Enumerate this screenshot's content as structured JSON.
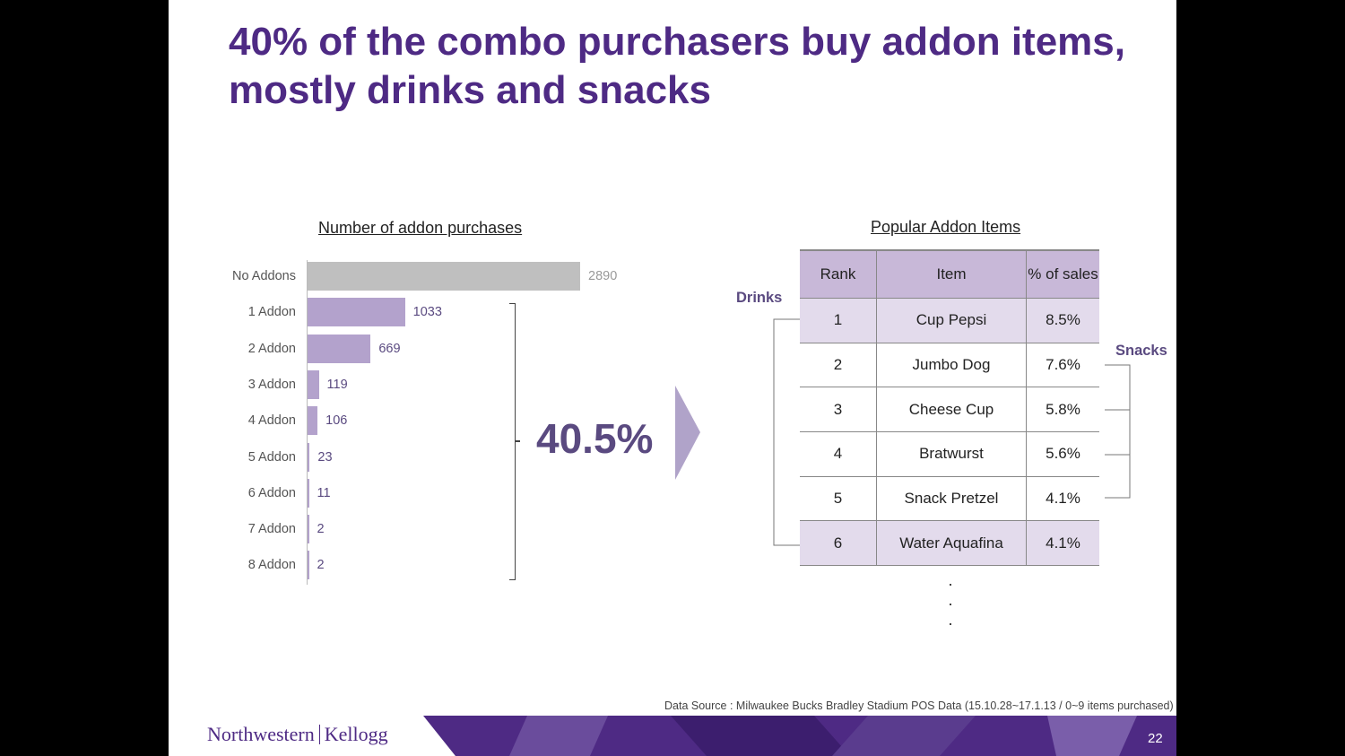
{
  "slide": {
    "title": "40% of the combo purchasers buy addon items, mostly drinks and snacks",
    "page_number": "22",
    "source": "Data Source : Milwaukee Bucks Bradley Stadium POS Data (15.10.28~17.1.13 / 0~9 items purchased)",
    "logo_left": "Northwestern",
    "logo_right": "Kellogg"
  },
  "chart_data": {
    "type": "bar",
    "orientation": "horizontal",
    "title": "Number of addon purchases",
    "categories": [
      "No Addons",
      "1 Addon",
      "2 Addon",
      "3 Addon",
      "4 Addon",
      "5 Addon",
      "6 Addon",
      "7 Addon",
      "8 Addon"
    ],
    "values": [
      2890,
      1033,
      669,
      119,
      106,
      23,
      11,
      2,
      2
    ],
    "value_labels": [
      "2890",
      "1033",
      "669",
      "119",
      "106",
      "23",
      "11",
      "2",
      "2"
    ],
    "bar_colors": [
      "#bfbfbf",
      "#b3a2cc",
      "#b3a2cc",
      "#b3a2cc",
      "#b3a2cc",
      "#b3a2cc",
      "#b3a2cc",
      "#b3a2cc",
      "#b3a2cc"
    ],
    "highlight_color": "#b3a2cc",
    "baseline_color": "#bfbfbf",
    "callout": "40.5%",
    "xlim": [
      0,
      2890
    ]
  },
  "table": {
    "title": "Popular Addon Items",
    "headers": [
      "Rank",
      "Item",
      "% of sales"
    ],
    "rows": [
      {
        "rank": "1",
        "item": "Cup Pepsi",
        "pct": "8.5%",
        "group": "drinks"
      },
      {
        "rank": "2",
        "item": "Jumbo Dog",
        "pct": "7.6%",
        "group": "snacks"
      },
      {
        "rank": "3",
        "item": "Cheese Cup",
        "pct": "5.8%",
        "group": "snacks"
      },
      {
        "rank": "4",
        "item": "Bratwurst",
        "pct": "5.6%",
        "group": "snacks"
      },
      {
        "rank": "5",
        "item": "Snack Pretzel",
        "pct": "4.1%",
        "group": "snacks"
      },
      {
        "rank": "6",
        "item": "Water Aquafina",
        "pct": "4.1%",
        "group": "drinks"
      }
    ],
    "continuation": "·\n·\n·",
    "drinks_label": "Drinks",
    "snacks_label": "Snacks",
    "header_color": "#c8b8d8",
    "highlight_color": "#e3dbec"
  },
  "colors": {
    "title": "#4e2a84",
    "accent": "#5a4a80"
  }
}
